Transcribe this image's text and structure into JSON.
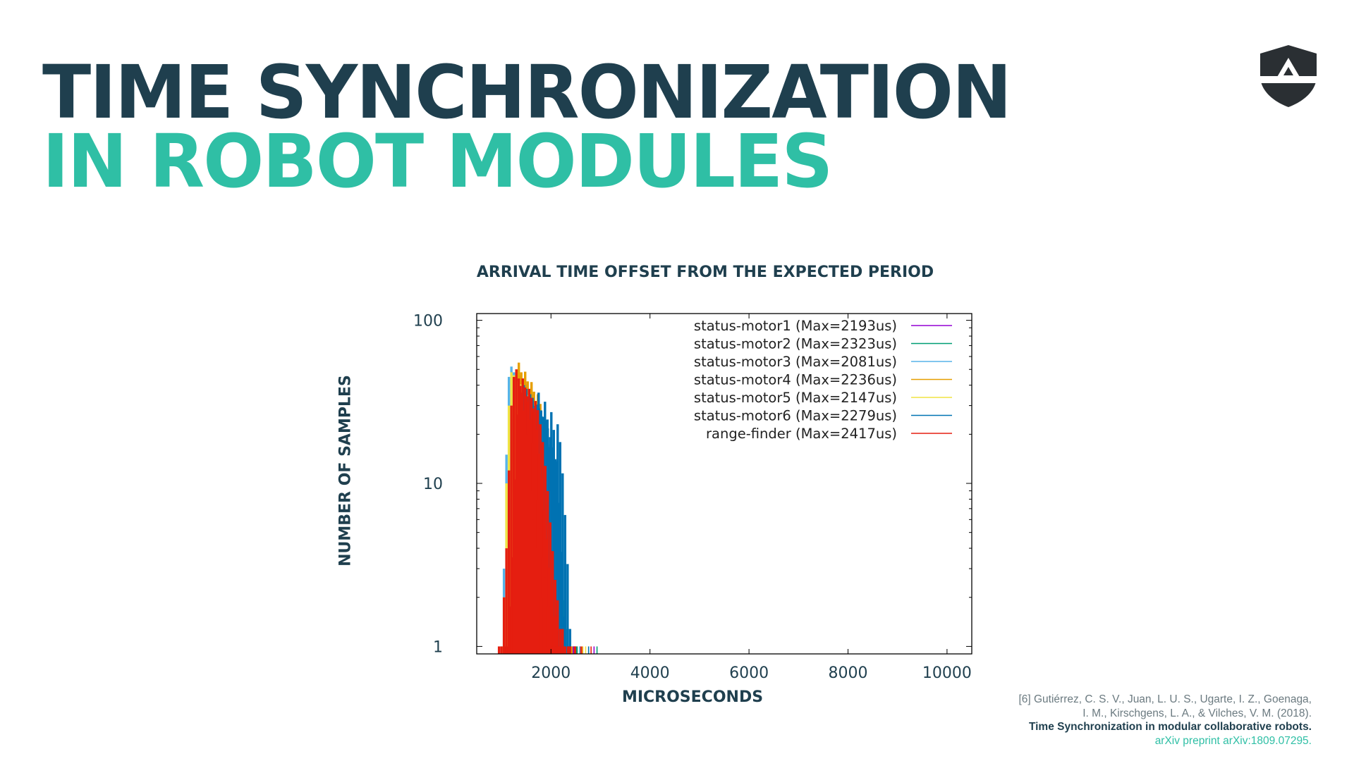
{
  "slide": {
    "title_line1": "TIME SYNCHRONIZATION",
    "title_line2": "IN ROBOT MODULES"
  },
  "colors": {
    "title_dark": "#1f3f4e",
    "title_accent": "#2fbfa5",
    "logo": "#2a2f33"
  },
  "logo": {
    "icon": "shield-a-logo"
  },
  "citation": {
    "line1": "[6] Gutiérrez, C. S. V., Juan, L. U. S., Ugarte, I. Z., Goenaga,",
    "line2": "I. M., Kirschgens, L. A., & Vilches, V. M. (2018).",
    "line3": "Time Synchronization in modular collaborative robots.",
    "line4": "arXiv preprint arXiv:1809.07295."
  },
  "chart_data": {
    "type": "histogram",
    "title": "ARRIVAL TIME OFFSET FROM THE EXPECTED PERIOD",
    "xlabel": "MICROSECONDS",
    "ylabel": "NUMBER OF SAMPLES",
    "y_scale": "log",
    "xlim": [
      500,
      10500
    ],
    "ylim": [
      0.9,
      110
    ],
    "x_ticks": [
      2000,
      4000,
      6000,
      8000,
      10000
    ],
    "x_tick_labels": [
      "2000",
      "4000",
      "6000",
      "8000",
      "10000"
    ],
    "y_ticks": [
      1,
      10,
      100
    ],
    "y_tick_labels": [
      "1",
      "10",
      "100"
    ],
    "legend_position": "top-right",
    "grid": false,
    "series": [
      {
        "name": "status-motor1 (Max=2193us)",
        "color": "#9400d3",
        "x": [
          1250,
          1300,
          1350,
          1400,
          1450,
          1500,
          1550,
          1600,
          1650,
          1700,
          1750,
          1800,
          1850,
          1900,
          1950,
          2000,
          2050,
          2100,
          2150,
          2193
        ],
        "y": [
          1,
          2,
          8,
          25,
          44,
          50,
          46,
          38,
          30,
          24,
          18,
          12,
          8,
          5,
          3,
          2,
          1,
          1,
          1,
          1
        ]
      },
      {
        "name": "status-motor2 (Max=2323us)",
        "color": "#009e73",
        "x": [
          1300,
          1350,
          1400,
          1450,
          1500,
          1550,
          1600,
          1650,
          1700,
          1750,
          1800,
          1850,
          1900,
          1950,
          2000,
          2050,
          2100,
          2150,
          2200,
          2250,
          2323
        ],
        "y": [
          1,
          3,
          9,
          20,
          32,
          40,
          42,
          38,
          33,
          27,
          22,
          17,
          13,
          9,
          6,
          4,
          3,
          2,
          1,
          1,
          1
        ]
      },
      {
        "name": "status-motor3 (Max=2081us)",
        "color": "#56b4e9",
        "x": [
          1200,
          1250,
          1300,
          1350,
          1400,
          1450,
          1500,
          1550,
          1600,
          1650,
          1700,
          1750,
          1800,
          1850,
          1900,
          1950,
          2000,
          2081
        ],
        "y": [
          1,
          3,
          15,
          45,
          52,
          48,
          40,
          32,
          24,
          17,
          11,
          7,
          4,
          3,
          2,
          1,
          1,
          1
        ]
      },
      {
        "name": "status-motor4 (Max=2236us)",
        "color": "#e69f00",
        "x": [
          1250,
          1300,
          1350,
          1400,
          1450,
          1500,
          1550,
          1600,
          1650,
          1700,
          1750,
          1800,
          1850,
          1900,
          1950,
          2000,
          2050,
          2100,
          2150,
          2236
        ],
        "y": [
          1,
          2,
          6,
          18,
          34,
          50,
          55,
          48,
          40,
          31,
          23,
          16,
          10,
          6,
          4,
          3,
          2,
          1,
          1,
          1
        ]
      },
      {
        "name": "status-motor5 (Max=2147us)",
        "color": "#f0e442",
        "x": [
          1200,
          1250,
          1300,
          1350,
          1400,
          1450,
          1500,
          1550,
          1600,
          1650,
          1700,
          1750,
          1800,
          1850,
          1900,
          1950,
          2000,
          2050,
          2147
        ],
        "y": [
          1,
          2,
          10,
          30,
          48,
          46,
          40,
          30,
          22,
          16,
          11,
          7,
          5,
          3,
          2,
          2,
          1,
          1,
          1
        ]
      },
      {
        "name": "status-motor6 (Max=2279us)",
        "color": "#0072b2",
        "x": [
          1400,
          1450,
          1500,
          1550,
          1600,
          1650,
          1700,
          1750,
          1800,
          1850,
          1900,
          1950,
          2000,
          2050,
          2100,
          2150,
          2200,
          2279
        ],
        "y": [
          1,
          3,
          10,
          22,
          34,
          40,
          38,
          34,
          30,
          26,
          22,
          36,
          28,
          18,
          10,
          5,
          2,
          1
        ]
      },
      {
        "name": "range-finder (Max=2417us)",
        "color": "#e51e10",
        "x": [
          1150,
          1200,
          1250,
          1300,
          1350,
          1400,
          1450,
          1500,
          1550,
          1600,
          1650,
          1700,
          1750,
          1800,
          1850,
          1900,
          1950,
          2000,
          2050,
          2100,
          2200,
          2300,
          2417
        ],
        "y": [
          1,
          1,
          2,
          4,
          12,
          30,
          45,
          50,
          44,
          36,
          28,
          20,
          14,
          9,
          6,
          4,
          3,
          2,
          2,
          1,
          1,
          1,
          1
        ]
      }
    ],
    "outliers_x": [
      2450,
      2530,
      2580,
      2640,
      2700,
      2760,
      2810,
      2870,
      2930
    ]
  }
}
